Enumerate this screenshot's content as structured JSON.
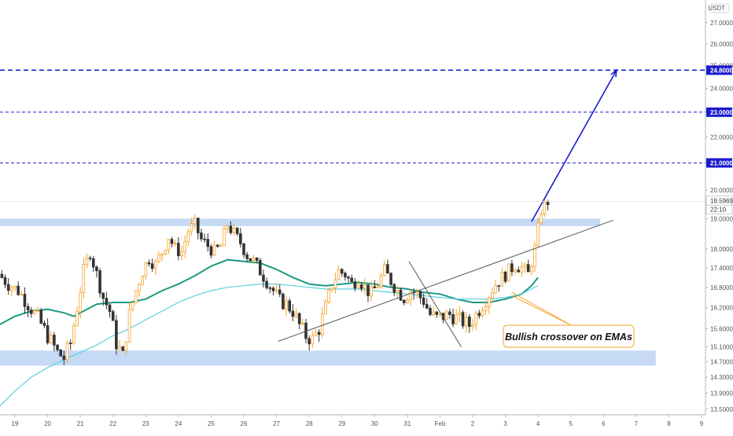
{
  "chart_data": {
    "type": "candlestick",
    "currency_label": "USDT",
    "y_axis": {
      "scale": "log",
      "ticks": [
        "13.5000",
        "13.9000",
        "14.3000",
        "14.7000",
        "15.1000",
        "15.6000",
        "16.2000",
        "16.8000",
        "17.4000",
        "18.0000",
        "19.0000",
        "20.0000",
        "21.0000",
        "22.0000",
        "23.0000",
        "24.0000",
        "25.0000",
        "26.0000",
        "27.0000"
      ],
      "range": [
        13.3,
        28.4
      ]
    },
    "x_axis": {
      "ticks": [
        "19",
        "20",
        "21",
        "22",
        "23",
        "24",
        "25",
        "26",
        "27",
        "28",
        "29",
        "30",
        "31",
        "Feb",
        "2",
        "3",
        "4",
        "5",
        "6",
        "7",
        "8",
        "9"
      ],
      "range_days": [
        -0.5,
        21.5
      ]
    },
    "price_label": "19.5969",
    "countdown_label": "22:10",
    "horizontal_levels": [
      {
        "value": "24.8000",
        "price": 24.8,
        "style": "dashed-bold"
      },
      {
        "value": "23.0000",
        "price": 23.0,
        "style": "dashed"
      },
      {
        "value": "21.0000",
        "price": 21.0,
        "style": "dashed"
      }
    ],
    "zones": [
      {
        "name": "resistance",
        "from_day": -0.5,
        "to_day": 17.9,
        "low": 18.75,
        "high": 19.0
      },
      {
        "name": "support",
        "from_day": -0.5,
        "to_day": 19.6,
        "low": 14.6,
        "high": 15.0
      }
    ],
    "trendlines": [
      {
        "points": [
          [
            8.05,
            15.25
          ],
          [
            18.3,
            18.95
          ]
        ],
        "color": "#555555"
      },
      {
        "points": [
          [
            12.05,
            17.6
          ],
          [
            13.65,
            15.1
          ]
        ],
        "color": "#555555"
      },
      {
        "points": [
          [
            15.8,
            18.9
          ],
          [
            18.4,
            24.8
          ]
        ],
        "color": "#1a1acd",
        "arrow": true
      }
    ],
    "annotation": {
      "text": "Bullish crossover on EMAs",
      "pointer_targets": [
        [
          15.2,
          16.65
        ],
        [
          15.2,
          16.55
        ]
      ]
    },
    "series": [
      {
        "type": "ema-fast",
        "color": "#1a9a82",
        "points": [
          [
            -0.5,
            15.7
          ],
          [
            0,
            15.95
          ],
          [
            0.5,
            16.1
          ],
          [
            1,
            16.15
          ],
          [
            1.5,
            16.05
          ],
          [
            1.8,
            15.95
          ],
          [
            2,
            16.05
          ],
          [
            2.5,
            16.3
          ],
          [
            3,
            16.35
          ],
          [
            3.5,
            16.35
          ],
          [
            4,
            16.45
          ],
          [
            4.5,
            16.7
          ],
          [
            5,
            16.9
          ],
          [
            5.5,
            17.15
          ],
          [
            6,
            17.45
          ],
          [
            6.5,
            17.65
          ],
          [
            7,
            17.6
          ],
          [
            7.5,
            17.55
          ],
          [
            8,
            17.35
          ],
          [
            8.5,
            17.1
          ],
          [
            9,
            16.9
          ],
          [
            9.5,
            16.85
          ],
          [
            10,
            16.9
          ],
          [
            10.5,
            16.95
          ],
          [
            11,
            16.9
          ],
          [
            11.5,
            16.8
          ],
          [
            12,
            16.75
          ],
          [
            12.5,
            16.65
          ],
          [
            13,
            16.6
          ],
          [
            13.5,
            16.45
          ],
          [
            14,
            16.35
          ],
          [
            14.5,
            16.35
          ],
          [
            15,
            16.45
          ],
          [
            15.5,
            16.6
          ],
          [
            15.8,
            16.85
          ],
          [
            16,
            17.1
          ]
        ]
      },
      {
        "type": "ema-slow",
        "color": "#5ecfe0",
        "points": [
          [
            -0.5,
            13.55
          ],
          [
            0,
            13.95
          ],
          [
            0.5,
            14.3
          ],
          [
            1,
            14.55
          ],
          [
            1.5,
            14.75
          ],
          [
            2,
            14.95
          ],
          [
            2.5,
            15.15
          ],
          [
            3,
            15.4
          ],
          [
            3.5,
            15.6
          ],
          [
            4,
            15.85
          ],
          [
            4.5,
            16.1
          ],
          [
            5,
            16.35
          ],
          [
            5.5,
            16.55
          ],
          [
            6,
            16.7
          ],
          [
            6.5,
            16.8
          ],
          [
            7,
            16.85
          ],
          [
            7.5,
            16.9
          ],
          [
            8,
            16.9
          ],
          [
            8.5,
            16.85
          ],
          [
            9,
            16.8
          ],
          [
            9.5,
            16.75
          ],
          [
            10,
            16.75
          ],
          [
            10.5,
            16.75
          ],
          [
            11,
            16.7
          ],
          [
            11.5,
            16.65
          ],
          [
            12,
            16.6
          ],
          [
            12.5,
            16.55
          ],
          [
            13,
            16.5
          ],
          [
            13.5,
            16.45
          ],
          [
            14,
            16.45
          ],
          [
            14.5,
            16.45
          ],
          [
            15,
            16.5
          ],
          [
            15.5,
            16.6
          ],
          [
            15.8,
            16.75
          ],
          [
            16,
            16.85
          ]
        ]
      },
      {
        "type": "candles",
        "points": [
          [
            -0.5,
            17.2
          ],
          [
            -0.2,
            16.9
          ],
          [
            0.1,
            16.7
          ],
          [
            0.4,
            16.3
          ],
          [
            0.7,
            15.9
          ],
          [
            1.0,
            15.4
          ],
          [
            1.3,
            14.95
          ],
          [
            1.5,
            14.8
          ],
          [
            1.7,
            15.2
          ],
          [
            1.9,
            16.2
          ],
          [
            2.1,
            17.3
          ],
          [
            2.3,
            17.9
          ],
          [
            2.5,
            17.2
          ],
          [
            2.7,
            16.5
          ],
          [
            2.9,
            16.1
          ],
          [
            3.1,
            15.2
          ],
          [
            3.3,
            14.85
          ],
          [
            3.5,
            16.0
          ],
          [
            3.7,
            16.7
          ],
          [
            3.9,
            17.3
          ],
          [
            4.1,
            17.7
          ],
          [
            4.3,
            17.5
          ],
          [
            4.5,
            17.9
          ],
          [
            4.7,
            18.4
          ],
          [
            4.9,
            18.0
          ],
          [
            5.1,
            17.9
          ],
          [
            5.3,
            18.6
          ],
          [
            5.5,
            18.8
          ],
          [
            5.7,
            18.3
          ],
          [
            5.9,
            18.1
          ],
          [
            6.1,
            17.9
          ],
          [
            6.3,
            18.1
          ],
          [
            6.5,
            18.8
          ],
          [
            6.7,
            18.5
          ],
          [
            6.9,
            18.2
          ],
          [
            7.1,
            17.8
          ],
          [
            7.3,
            17.6
          ],
          [
            7.5,
            17.3
          ],
          [
            7.7,
            17.0
          ],
          [
            7.9,
            16.7
          ],
          [
            8.1,
            16.4
          ],
          [
            8.3,
            16.3
          ],
          [
            8.5,
            16.1
          ],
          [
            8.7,
            15.7
          ],
          [
            8.9,
            15.4
          ],
          [
            9.1,
            15.3
          ],
          [
            9.3,
            15.6
          ],
          [
            9.5,
            16.2
          ],
          [
            9.7,
            16.9
          ],
          [
            9.9,
            17.3
          ],
          [
            10.1,
            17.2
          ],
          [
            10.3,
            16.9
          ],
          [
            10.5,
            17.1
          ],
          [
            10.7,
            16.8
          ],
          [
            10.9,
            16.6
          ],
          [
            11.1,
            16.9
          ],
          [
            11.3,
            17.3
          ],
          [
            11.5,
            17.0
          ],
          [
            11.7,
            16.7
          ],
          [
            11.9,
            16.5
          ],
          [
            12.1,
            16.7
          ],
          [
            12.3,
            16.6
          ],
          [
            12.5,
            16.4
          ],
          [
            12.7,
            16.0
          ],
          [
            12.9,
            15.9
          ],
          [
            13.1,
            15.95
          ],
          [
            13.3,
            16.0
          ],
          [
            13.5,
            15.9
          ],
          [
            13.7,
            15.8
          ],
          [
            13.9,
            15.7
          ],
          [
            14.1,
            16.0
          ],
          [
            14.3,
            16.3
          ],
          [
            14.5,
            16.6
          ],
          [
            14.7,
            16.9
          ],
          [
            14.9,
            17.1
          ],
          [
            15.1,
            17.3
          ],
          [
            15.3,
            17.5
          ],
          [
            15.5,
            17.4
          ],
          [
            15.7,
            17.2
          ],
          [
            15.9,
            18.0
          ],
          [
            16.1,
            19.3
          ],
          [
            16.3,
            19.6
          ]
        ]
      }
    ]
  }
}
